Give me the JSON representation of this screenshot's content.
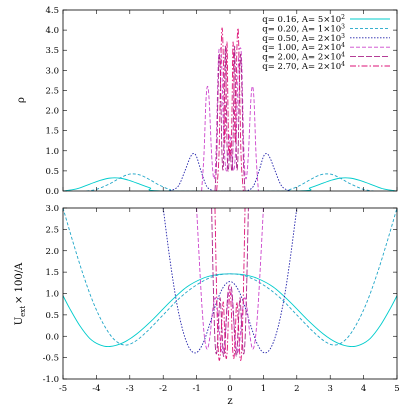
{
  "chart_data": [
    {
      "type": "line",
      "ylabel": "ρ",
      "xlim": [
        -5,
        5
      ],
      "ylim": [
        0,
        4.5
      ],
      "xticks": [
        "-5",
        "-4",
        "-3",
        "-2",
        "-1",
        "0",
        "1",
        "2",
        "3",
        "4",
        "5"
      ],
      "yticks": [
        "0.0",
        "0.5",
        "1.0",
        "1.5",
        "2.0",
        "2.5",
        "3.0",
        "3.5",
        "4.0",
        "4.5"
      ],
      "legend_position": "top-right",
      "series": [
        {
          "name": "q= 0.16, A= 5×10²",
          "legend_base": "q= 0.16, A= 5×10",
          "legend_exp": "2",
          "color": "#00cccc",
          "dash": "none",
          "x": [
            -5,
            -4.6,
            -4.2,
            -3.9,
            -3.6,
            -3.3,
            -3.0,
            -2.8,
            -2.4,
            -2.0,
            2.0,
            2.4,
            2.8,
            3.0,
            3.3,
            3.6,
            3.9,
            4.2,
            4.6,
            5
          ],
          "y": [
            0.0,
            0.05,
            0.17,
            0.26,
            0.32,
            0.32,
            0.26,
            0.2,
            0.08,
            0.0,
            0.0,
            0.08,
            0.2,
            0.26,
            0.32,
            0.32,
            0.26,
            0.17,
            0.05,
            0.0
          ]
        },
        {
          "name": "q= 0.20, A= 1×10³",
          "legend_base": "q= 0.20, A= 1×10",
          "legend_exp": "3",
          "color": "#1fa6c8",
          "dash": "3,2",
          "x": [
            -4.3,
            -4.0,
            -3.6,
            -3.3,
            -3.0,
            -2.7,
            -2.4,
            -2.1,
            -1.8,
            -1.5,
            1.5,
            1.8,
            2.1,
            2.4,
            2.7,
            3.0,
            3.3,
            3.6,
            4.0,
            4.3
          ],
          "y": [
            0.0,
            0.04,
            0.18,
            0.32,
            0.42,
            0.4,
            0.28,
            0.14,
            0.04,
            0.0,
            0.0,
            0.04,
            0.14,
            0.28,
            0.4,
            0.42,
            0.32,
            0.18,
            0.04,
            0.0
          ]
        },
        {
          "name": "q= 0.50, A= 2×10³",
          "legend_base": "q= 0.50, A= 2×10",
          "legend_exp": "3",
          "color": "#2020aa",
          "dash": "1.5,1.5",
          "x": [
            -1.8,
            -1.55,
            -1.35,
            -1.2,
            -1.1,
            -1.0,
            -0.85,
            -0.7,
            -0.55,
            -0.45,
            0.45,
            0.55,
            0.7,
            0.85,
            1.0,
            1.1,
            1.2,
            1.35,
            1.55,
            1.8
          ],
          "y": [
            0.0,
            0.12,
            0.5,
            0.82,
            0.93,
            0.85,
            0.45,
            0.12,
            0.02,
            0.0,
            0.0,
            0.02,
            0.12,
            0.45,
            0.85,
            0.93,
            0.82,
            0.5,
            0.12,
            0.0
          ]
        },
        {
          "name": "q= 1.00, A= 2×10⁴",
          "legend_base": "q= 1.00, A= 2×10",
          "legend_exp": "4",
          "color": "#cc44cc",
          "dash": "4,2",
          "x": [
            -0.85,
            -0.78,
            -0.72,
            -0.67,
            -0.62,
            -0.55,
            -0.48,
            -0.42,
            -0.35,
            -0.3,
            -0.25,
            -0.18,
            -0.1,
            0.0,
            0.1,
            0.18,
            0.25,
            0.3,
            0.35,
            0.42,
            0.48,
            0.55,
            0.62,
            0.67,
            0.72,
            0.78,
            0.85
          ],
          "y": [
            0.0,
            0.9,
            2.25,
            2.6,
            2.2,
            0.9,
            0.3,
            0.9,
            3.2,
            3.55,
            3.2,
            1.2,
            0.5,
            1.4,
            0.5,
            1.2,
            3.2,
            3.55,
            3.2,
            0.9,
            0.3,
            0.9,
            2.2,
            2.6,
            2.25,
            0.9,
            0.0
          ]
        },
        {
          "name": "q= 2.00, A= 2×10⁴",
          "legend_base": "q= 2.00, A= 2×10",
          "legend_exp": "4",
          "color": "#aa2288",
          "dash": "6,2",
          "x": [
            -0.45,
            -0.4,
            -0.36,
            -0.32,
            -0.28,
            -0.24,
            -0.2,
            -0.17,
            -0.14,
            -0.11,
            -0.08,
            -0.05,
            0.0,
            0.05,
            0.08,
            0.11,
            0.14,
            0.17,
            0.2,
            0.24,
            0.28,
            0.32,
            0.36,
            0.4,
            0.45
          ],
          "y": [
            0.0,
            0.8,
            2.4,
            3.4,
            2.6,
            0.9,
            0.6,
            2.0,
            3.6,
            2.2,
            0.8,
            0.5,
            1.0,
            0.5,
            0.8,
            2.2,
            3.6,
            2.0,
            0.6,
            0.9,
            2.6,
            3.4,
            2.4,
            0.8,
            0.0
          ]
        },
        {
          "name": "q= 2.70, A= 2×10⁴",
          "legend_base": "q= 2.70, A= 2×10",
          "legend_exp": "4",
          "color": "#dd1177",
          "dash": "6,2,1.5,2",
          "x": [
            -0.4,
            -0.33,
            -0.28,
            -0.24,
            -0.2,
            -0.16,
            -0.12,
            -0.09,
            -0.06,
            -0.03,
            0.0,
            0.03,
            0.06,
            0.09,
            0.12,
            0.16,
            0.2,
            0.24,
            0.28,
            0.33,
            0.4
          ],
          "y": [
            0.0,
            0.9,
            3.0,
            4.05,
            3.3,
            1.2,
            2.5,
            3.7,
            2.0,
            0.9,
            1.2,
            0.9,
            2.0,
            3.7,
            2.5,
            1.2,
            3.3,
            4.05,
            3.0,
            0.9,
            0.0
          ]
        }
      ]
    },
    {
      "type": "line",
      "xlabel": "z",
      "ylabel_base": "U",
      "ylabel_sub": "ext",
      "ylabel_rest": "× 100/A",
      "xlim": [
        -5,
        5
      ],
      "ylim": [
        -1.0,
        3.0
      ],
      "xticks": [
        "-5",
        "-4",
        "-3",
        "-2",
        "-1",
        "0",
        "1",
        "2",
        "3",
        "4",
        "5"
      ],
      "yticks": [
        "-1.0",
        "-0.5",
        "0.0",
        "0.5",
        "1.0",
        "1.5",
        "2.0",
        "2.5",
        "3.0"
      ],
      "series": [
        {
          "name": "q= 0.16",
          "color": "#00cccc",
          "dash": "none",
          "x": [
            -5,
            -4.8,
            -4.5,
            -4.2,
            -3.9,
            -3.6,
            -3.2,
            -2.8,
            -2.3,
            -1.8,
            -1.3,
            -0.8,
            -0.4,
            0.0,
            0.4,
            0.8,
            1.3,
            1.8,
            2.3,
            2.8,
            3.2,
            3.6,
            3.9,
            4.2,
            4.5,
            4.8,
            5
          ],
          "y": [
            0.95,
            0.65,
            0.25,
            -0.05,
            -0.2,
            -0.24,
            -0.15,
            0.05,
            0.4,
            0.8,
            1.15,
            1.36,
            1.44,
            1.46,
            1.44,
            1.36,
            1.15,
            0.8,
            0.4,
            0.05,
            -0.15,
            -0.24,
            -0.2,
            -0.05,
            0.25,
            0.65,
            0.95
          ]
        },
        {
          "name": "q= 0.20",
          "color": "#1fa6c8",
          "dash": "3,2",
          "x": [
            -5.0,
            -4.7,
            -4.4,
            -4.1,
            -3.8,
            -3.5,
            -3.2,
            -2.9,
            -2.5,
            -2.0,
            -1.5,
            -1.0,
            -0.5,
            0.0,
            0.5,
            1.0,
            1.5,
            2.0,
            2.5,
            2.9,
            3.2,
            3.5,
            3.8,
            4.1,
            4.4,
            4.7,
            5.0
          ],
          "y": [
            3.0,
            2.2,
            1.45,
            0.8,
            0.3,
            -0.05,
            -0.2,
            -0.15,
            0.1,
            0.5,
            0.9,
            1.2,
            1.4,
            1.46,
            1.4,
            1.2,
            0.9,
            0.5,
            0.1,
            -0.15,
            -0.2,
            -0.05,
            0.3,
            0.8,
            1.45,
            2.2,
            3.0
          ]
        },
        {
          "name": "q= 0.50",
          "color": "#2020aa",
          "dash": "1.5,1.5",
          "x": [
            -2.0,
            -1.8,
            -1.6,
            -1.4,
            -1.2,
            -1.0,
            -0.8,
            -0.6,
            -0.4,
            -0.2,
            0.0,
            0.2,
            0.4,
            0.6,
            0.8,
            1.0,
            1.2,
            1.4,
            1.6,
            1.8,
            2.0
          ],
          "y": [
            3.0,
            1.8,
            0.8,
            0.1,
            -0.3,
            -0.38,
            -0.15,
            0.3,
            0.8,
            1.15,
            1.28,
            1.15,
            0.8,
            0.3,
            -0.15,
            -0.38,
            -0.3,
            0.1,
            0.8,
            1.8,
            3.0
          ]
        },
        {
          "name": "q= 1.00",
          "color": "#cc44cc",
          "dash": "4,2",
          "x": [
            -1.0,
            -0.92,
            -0.84,
            -0.76,
            -0.68,
            -0.6,
            -0.52,
            -0.44,
            -0.36,
            -0.28,
            -0.2,
            -0.12,
            -0.05,
            0.0,
            0.05,
            0.12,
            0.2,
            0.28,
            0.36,
            0.44,
            0.52,
            0.6,
            0.68,
            0.76,
            0.84,
            0.92,
            1.0
          ],
          "y": [
            3.0,
            1.8,
            0.7,
            -0.05,
            -0.3,
            0.0,
            0.6,
            0.9,
            0.5,
            -0.2,
            -0.35,
            0.3,
            0.95,
            1.1,
            0.95,
            0.3,
            -0.35,
            -0.2,
            0.5,
            0.9,
            0.6,
            0.0,
            -0.3,
            -0.05,
            0.7,
            1.8,
            3.0
          ]
        },
        {
          "name": "q= 2.00",
          "color": "#aa2288",
          "dash": "6,2",
          "x": [
            -0.55,
            -0.5,
            -0.45,
            -0.4,
            -0.35,
            -0.3,
            -0.25,
            -0.2,
            -0.15,
            -0.1,
            -0.05,
            0.0,
            0.05,
            0.1,
            0.15,
            0.2,
            0.25,
            0.3,
            0.35,
            0.4,
            0.45,
            0.5,
            0.55
          ],
          "y": [
            3.0,
            1.2,
            -0.1,
            -0.4,
            0.2,
            0.9,
            0.3,
            -0.45,
            -0.2,
            0.6,
            1.1,
            1.2,
            1.1,
            0.6,
            -0.2,
            -0.45,
            0.3,
            0.9,
            0.2,
            -0.4,
            -0.1,
            1.2,
            3.0
          ]
        },
        {
          "name": "q= 2.70",
          "color": "#dd1177",
          "dash": "6,2,1.5,2",
          "x": [
            -0.45,
            -0.4,
            -0.35,
            -0.3,
            -0.25,
            -0.2,
            -0.16,
            -0.12,
            -0.08,
            -0.04,
            0.0,
            0.04,
            0.08,
            0.12,
            0.16,
            0.2,
            0.25,
            0.3,
            0.35,
            0.4,
            0.45
          ],
          "y": [
            3.0,
            1.0,
            -0.35,
            -0.5,
            0.3,
            0.8,
            0.1,
            -0.5,
            -0.3,
            0.6,
            1.05,
            0.6,
            -0.3,
            -0.5,
            0.1,
            0.8,
            0.3,
            -0.5,
            -0.35,
            1.0,
            3.0
          ]
        }
      ]
    }
  ]
}
